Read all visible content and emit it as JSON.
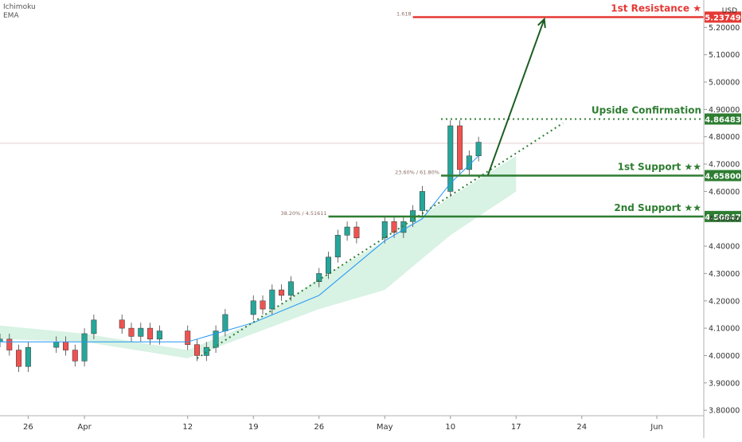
{
  "indicators": [
    "Ichimoku",
    "EMA"
  ],
  "chart_data": {
    "type": "candlestick",
    "currency": "USD",
    "y_axis_ticks": [
      3.8,
      3.9,
      4.0,
      4.1,
      4.2,
      4.3,
      4.4,
      4.5,
      4.6,
      4.7,
      4.8,
      4.9,
      5.0,
      5.1,
      5.2
    ],
    "y_axis_tick_labels": [
      "3.80000",
      "3.90000",
      "4.00000",
      "4.10000",
      "4.20000",
      "4.30000",
      "4.40000",
      "4.50000",
      "4.60000",
      "4.70000",
      "4.80000",
      "4.90000",
      "5.00000",
      "5.10000",
      "5.20000"
    ],
    "ylim": [
      3.78,
      5.3
    ],
    "x_axis_ticks": [
      {
        "label": "26",
        "date": "2021-03-26"
      },
      {
        "label": "Apr",
        "date": "2021-04-01"
      },
      {
        "label": "12",
        "date": "2021-04-12"
      },
      {
        "label": "19",
        "date": "2021-04-19"
      },
      {
        "label": "26",
        "date": "2021-04-26"
      },
      {
        "label": "May",
        "date": "2021-05-03"
      },
      {
        "label": "10",
        "date": "2021-05-10"
      },
      {
        "label": "17",
        "date": "2021-05-17"
      },
      {
        "label": "24",
        "date": "2021-05-24"
      },
      {
        "label": "Jun",
        "date": "2021-06-01"
      }
    ],
    "xlim": [
      "2021-03-23",
      "2021-06-06"
    ],
    "closes": [
      [
        "2021-03-23",
        4.06
      ],
      [
        "2021-03-24",
        4.02
      ],
      [
        "2021-03-25",
        3.96
      ],
      [
        "2021-03-26",
        4.03
      ],
      [
        "2021-03-29",
        4.05
      ],
      [
        "2021-03-30",
        4.02
      ],
      [
        "2021-03-31",
        3.98
      ],
      [
        "2021-04-01",
        4.08
      ],
      [
        "2021-04-02",
        4.13
      ],
      [
        "2021-04-05",
        4.1
      ],
      [
        "2021-04-06",
        4.07
      ],
      [
        "2021-04-07",
        4.1
      ],
      [
        "2021-04-08",
        4.06
      ],
      [
        "2021-04-09",
        4.09
      ],
      [
        "2021-04-12",
        4.04
      ],
      [
        "2021-04-13",
        4.0
      ],
      [
        "2021-04-14",
        4.03
      ],
      [
        "2021-04-15",
        4.09
      ],
      [
        "2021-04-16",
        4.15
      ],
      [
        "2021-04-19",
        4.2
      ],
      [
        "2021-04-20",
        4.17
      ],
      [
        "2021-04-21",
        4.24
      ],
      [
        "2021-04-22",
        4.22
      ],
      [
        "2021-04-23",
        4.27
      ],
      [
        "2021-04-26",
        4.3
      ],
      [
        "2021-04-27",
        4.36
      ],
      [
        "2021-04-28",
        4.44
      ],
      [
        "2021-04-29",
        4.47
      ],
      [
        "2021-04-30",
        4.43
      ],
      [
        "2021-05-03",
        4.49
      ],
      [
        "2021-05-04",
        4.45
      ],
      [
        "2021-05-05",
        4.49
      ],
      [
        "2021-05-06",
        4.53
      ],
      [
        "2021-05-07",
        4.6
      ],
      [
        "2021-05-10",
        4.84
      ],
      [
        "2021-05-11",
        4.68
      ],
      [
        "2021-05-12",
        4.73
      ],
      [
        "2021-05-13",
        4.78
      ]
    ],
    "ema": [
      [
        "2021-03-23",
        4.05
      ],
      [
        "2021-04-01",
        4.05
      ],
      [
        "2021-04-12",
        4.05
      ],
      [
        "2021-04-19",
        4.12
      ],
      [
        "2021-04-26",
        4.22
      ],
      [
        "2021-05-03",
        4.42
      ],
      [
        "2021-05-07",
        4.5
      ],
      [
        "2021-05-10",
        4.63
      ],
      [
        "2021-05-13",
        4.73
      ]
    ],
    "cloud": {
      "upper": [
        [
          "2021-03-23",
          4.11
        ],
        [
          "2021-04-01",
          4.08
        ],
        [
          "2021-04-12",
          4.02
        ],
        [
          "2021-04-19",
          4.12
        ],
        [
          "2021-04-26",
          4.28
        ],
        [
          "2021-05-03",
          4.42
        ],
        [
          "2021-05-10",
          4.58
        ],
        [
          "2021-05-17",
          4.73
        ]
      ],
      "lower": [
        [
          "2021-03-23",
          4.06
        ],
        [
          "2021-04-01",
          4.05
        ],
        [
          "2021-04-12",
          3.99
        ],
        [
          "2021-04-19",
          4.08
        ],
        [
          "2021-04-26",
          4.17
        ],
        [
          "2021-05-03",
          4.24
        ],
        [
          "2021-05-10",
          4.44
        ],
        [
          "2021-05-17",
          4.6
        ]
      ]
    },
    "levels": [
      {
        "name": "1st Resistance ★",
        "value": 5.23749,
        "label": "5.23749",
        "color": "#e53935",
        "style": "solid",
        "fib": "1.618"
      },
      {
        "name": "Upside Confirmation",
        "value": 4.86483,
        "label": "4.86483",
        "color": "#2e7d32",
        "style": "dotted"
      },
      {
        "name": "1st Support ★★",
        "value": 4.658,
        "label": "4.65800",
        "color": "#2e7d32",
        "style": "solid",
        "fib": "23.60% / 61.80%"
      },
      {
        "name": "2nd Support ★★",
        "value": 4.50847,
        "label": "4.50847",
        "color": "#2e7d32",
        "style": "solid",
        "fib": "38.20% / 4.51611"
      }
    ],
    "current_price": 4.776,
    "trendline": {
      "from": [
        "2021-04-13",
        3.99
      ],
      "to": [
        "2021-05-22",
        4.85
      ]
    },
    "projection_arrow": {
      "from": [
        "2021-05-14",
        4.66
      ],
      "to": [
        "2021-05-20",
        5.23
      ]
    },
    "colors": {
      "bull": "#26a69a",
      "bear": "#ef5350",
      "support": "#2e7d32",
      "resistance": "#e53935",
      "cloud": "#c8ecd8"
    }
  }
}
